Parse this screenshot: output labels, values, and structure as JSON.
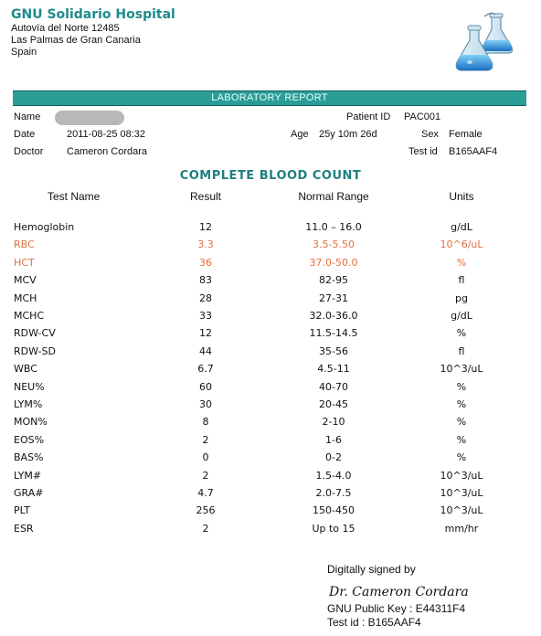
{
  "hospital": {
    "name": "GNU Solidario Hospital",
    "address1": "Autovía del Norte 12485",
    "address2": "Las Palmas de Gran Canaria",
    "address3": "Spain"
  },
  "report_title": "LABORATORY REPORT",
  "patient": {
    "name_label": "Name",
    "date_label": "Date",
    "date": "2011-08-25 08:32",
    "doctor_label": "Doctor",
    "doctor": "Cameron Cordara",
    "patient_id_label": "Patient ID",
    "patient_id": "PAC001",
    "age_label": "Age",
    "age": "25y 10m 26d",
    "sex_label": "Sex",
    "sex": "Female",
    "test_id_label": "Test id",
    "test_id": "B165AAF4"
  },
  "section_title": "COMPLETE BLOOD COUNT",
  "columns": {
    "test_name": "Test Name",
    "result": "Result",
    "normal_range": "Normal Range",
    "units": "Units"
  },
  "colors": {
    "accent": "#2a9d96",
    "heading": "#1f8080",
    "abnormal": "#e07040"
  },
  "icons": {
    "logo": "lab-flasks-icon"
  },
  "rows": [
    {
      "name": "Hemoglobin",
      "result": "12",
      "range": "11.0 – 16.0",
      "unit": "g/dL",
      "abnormal": false
    },
    {
      "name": "RBC",
      "result": "3.3",
      "range": "3.5-5.50",
      "unit": "10^6/uL",
      "abnormal": true
    },
    {
      "name": "HCT",
      "result": "36",
      "range": "37.0-50.0",
      "unit": "%",
      "abnormal": true
    },
    {
      "name": "MCV",
      "result": "83",
      "range": "82-95",
      "unit": "fl",
      "abnormal": false
    },
    {
      "name": "MCH",
      "result": "28",
      "range": "27-31",
      "unit": "pg",
      "abnormal": false
    },
    {
      "name": "MCHC",
      "result": "33",
      "range": "32.0-36.0",
      "unit": "g/dL",
      "abnormal": false
    },
    {
      "name": "RDW-CV",
      "result": "12",
      "range": "11.5-14.5",
      "unit": "%",
      "abnormal": false
    },
    {
      "name": "RDW-SD",
      "result": "44",
      "range": "35-56",
      "unit": "fl",
      "abnormal": false
    },
    {
      "name": "WBC",
      "result": "6.7",
      "range": "4.5-11",
      "unit": "10^3/uL",
      "abnormal": false
    },
    {
      "name": "NEU%",
      "result": "60",
      "range": "40-70",
      "unit": "%",
      "abnormal": false
    },
    {
      "name": "LYM%",
      "result": "30",
      "range": "20-45",
      "unit": "%",
      "abnormal": false
    },
    {
      "name": "MON%",
      "result": "8",
      "range": "2-10",
      "unit": "%",
      "abnormal": false
    },
    {
      "name": "EOS%",
      "result": "2",
      "range": "1-6",
      "unit": "%",
      "abnormal": false
    },
    {
      "name": "BAS%",
      "result": "0",
      "range": "0-2",
      "unit": "%",
      "abnormal": false
    },
    {
      "name": "LYM#",
      "result": "2",
      "range": "1.5-4.0",
      "unit": "10^3/uL",
      "abnormal": false
    },
    {
      "name": "GRA#",
      "result": "4.7",
      "range": "2.0-7.5",
      "unit": "10^3/uL",
      "abnormal": false
    },
    {
      "name": "PLT",
      "result": "256",
      "range": "150-450",
      "unit": "10^3/uL",
      "abnormal": false
    },
    {
      "name": "ESR",
      "result": "2",
      "range": "Up to 15",
      "unit": "mm/hr",
      "abnormal": false
    }
  ],
  "signature": {
    "signed_by": "Digitally signed by",
    "name": "Dr. Cameron Cordara",
    "public_key": "GNU Public Key : E44311F4",
    "test_id": "Test id : B165AAF4"
  }
}
